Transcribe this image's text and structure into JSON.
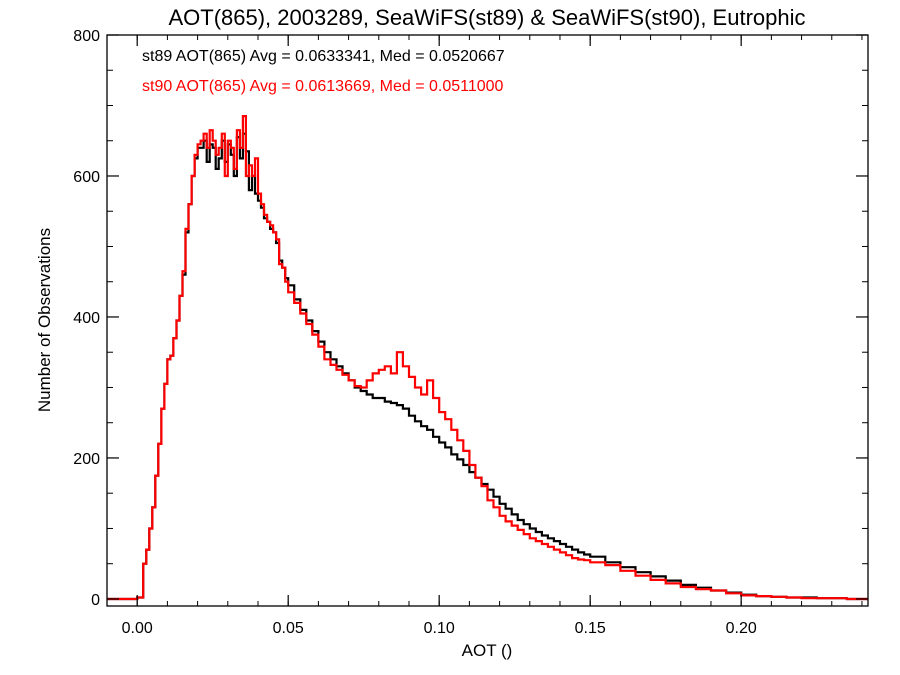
{
  "chart_data": {
    "type": "line",
    "step": true,
    "title": "AOT(865), 2003289, SeaWiFS(st89) & SeaWiFS(st90), Eutrophic",
    "xlabel": "AOT ()",
    "ylabel": "Number of Observations",
    "xlim": [
      -0.01,
      0.242
    ],
    "ylim": [
      -10,
      800
    ],
    "xticks": [
      0.0,
      0.05,
      0.1,
      0.15,
      0.2
    ],
    "xtick_labels": [
      "0.00",
      "0.05",
      "0.10",
      "0.15",
      "0.20"
    ],
    "yticks": [
      0,
      200,
      400,
      600,
      800
    ],
    "ytick_labels": [
      "0",
      "200",
      "400",
      "600",
      "800"
    ],
    "grid": false,
    "annotations": [
      {
        "text": "st89 AOT(865) Avg = 0.0633341, Med = 0.0520667",
        "color": "#000000"
      },
      {
        "text": "st90 AOT(865) Avg = 0.0613669, Med = 0.0511000",
        "color": "#ff0000"
      }
    ],
    "series": [
      {
        "color": "#000000",
        "x": [
          -0.01,
          0.0,
          0.002,
          0.003,
          0.004,
          0.005,
          0.006,
          0.007,
          0.008,
          0.009,
          0.01,
          0.011,
          0.012,
          0.013,
          0.014,
          0.015,
          0.016,
          0.017,
          0.018,
          0.019,
          0.02,
          0.021,
          0.022,
          0.023,
          0.024,
          0.025,
          0.026,
          0.027,
          0.028,
          0.029,
          0.03,
          0.031,
          0.032,
          0.033,
          0.034,
          0.035,
          0.036,
          0.037,
          0.038,
          0.039,
          0.04,
          0.041,
          0.042,
          0.043,
          0.044,
          0.045,
          0.046,
          0.047,
          0.048,
          0.049,
          0.05,
          0.052,
          0.054,
          0.056,
          0.058,
          0.06,
          0.062,
          0.064,
          0.066,
          0.068,
          0.07,
          0.072,
          0.074,
          0.076,
          0.078,
          0.08,
          0.082,
          0.084,
          0.086,
          0.088,
          0.09,
          0.092,
          0.094,
          0.096,
          0.098,
          0.1,
          0.102,
          0.104,
          0.106,
          0.108,
          0.11,
          0.112,
          0.114,
          0.116,
          0.118,
          0.12,
          0.122,
          0.124,
          0.126,
          0.128,
          0.13,
          0.132,
          0.134,
          0.136,
          0.138,
          0.14,
          0.142,
          0.144,
          0.146,
          0.148,
          0.15,
          0.155,
          0.16,
          0.165,
          0.17,
          0.175,
          0.18,
          0.185,
          0.19,
          0.195,
          0.2,
          0.205,
          0.21,
          0.215,
          0.22,
          0.225,
          0.23,
          0.235,
          0.24
        ],
        "y": [
          0,
          2,
          50,
          70,
          100,
          130,
          175,
          220,
          270,
          305,
          340,
          345,
          370,
          395,
          430,
          460,
          520,
          560,
          600,
          625,
          640,
          640,
          650,
          620,
          645,
          640,
          610,
          625,
          650,
          620,
          645,
          630,
          600,
          655,
          625,
          660,
          635,
          580,
          600,
          575,
          565,
          555,
          540,
          535,
          525,
          520,
          505,
          480,
          470,
          455,
          445,
          425,
          410,
          395,
          380,
          365,
          350,
          340,
          330,
          320,
          310,
          300,
          295,
          290,
          285,
          285,
          280,
          278,
          275,
          270,
          260,
          252,
          245,
          240,
          230,
          222,
          215,
          205,
          198,
          190,
          180,
          172,
          163,
          155,
          145,
          135,
          128,
          120,
          112,
          106,
          100,
          95,
          90,
          86,
          82,
          78,
          74,
          70,
          66,
          63,
          60,
          52,
          45,
          38,
          32,
          26,
          20,
          16,
          12,
          9,
          6,
          4,
          3,
          2,
          2,
          1,
          1,
          0,
          0
        ]
      },
      {
        "color": "#ff0000",
        "x": [
          -0.01,
          0.0,
          0.002,
          0.003,
          0.004,
          0.005,
          0.006,
          0.007,
          0.008,
          0.009,
          0.01,
          0.011,
          0.012,
          0.013,
          0.014,
          0.015,
          0.016,
          0.017,
          0.018,
          0.019,
          0.02,
          0.021,
          0.022,
          0.023,
          0.024,
          0.025,
          0.026,
          0.027,
          0.028,
          0.029,
          0.03,
          0.031,
          0.032,
          0.033,
          0.034,
          0.035,
          0.036,
          0.037,
          0.038,
          0.039,
          0.04,
          0.041,
          0.042,
          0.043,
          0.044,
          0.045,
          0.046,
          0.047,
          0.048,
          0.049,
          0.05,
          0.052,
          0.054,
          0.056,
          0.058,
          0.06,
          0.062,
          0.064,
          0.066,
          0.068,
          0.07,
          0.072,
          0.074,
          0.076,
          0.078,
          0.08,
          0.082,
          0.084,
          0.086,
          0.088,
          0.09,
          0.092,
          0.094,
          0.096,
          0.098,
          0.1,
          0.102,
          0.104,
          0.106,
          0.108,
          0.11,
          0.112,
          0.114,
          0.116,
          0.118,
          0.12,
          0.122,
          0.124,
          0.126,
          0.128,
          0.13,
          0.132,
          0.134,
          0.136,
          0.138,
          0.14,
          0.142,
          0.144,
          0.146,
          0.148,
          0.15,
          0.155,
          0.16,
          0.165,
          0.17,
          0.175,
          0.18,
          0.185,
          0.19,
          0.195,
          0.2,
          0.205,
          0.21,
          0.215,
          0.22,
          0.225,
          0.23,
          0.235,
          0.24
        ],
        "y": [
          0,
          2,
          50,
          70,
          100,
          130,
          175,
          220,
          270,
          305,
          340,
          345,
          370,
          395,
          430,
          465,
          525,
          560,
          600,
          630,
          645,
          650,
          660,
          640,
          665,
          650,
          630,
          640,
          660,
          600,
          650,
          640,
          610,
          665,
          640,
          685,
          600,
          615,
          600,
          625,
          575,
          560,
          545,
          535,
          530,
          520,
          510,
          475,
          470,
          450,
          435,
          420,
          405,
          390,
          375,
          358,
          340,
          332,
          325,
          318,
          310,
          302,
          300,
          310,
          320,
          325,
          330,
          320,
          350,
          330,
          315,
          300,
          290,
          310,
          285,
          265,
          255,
          240,
          225,
          210,
          190,
          172,
          160,
          140,
          130,
          118,
          110,
          104,
          98,
          92,
          86,
          82,
          78,
          74,
          70,
          66,
          62,
          58,
          56,
          55,
          52,
          48,
          40,
          33,
          27,
          22,
          17,
          14,
          12,
          8,
          5,
          4,
          3,
          2,
          1,
          1,
          1,
          0,
          0
        ]
      }
    ]
  }
}
